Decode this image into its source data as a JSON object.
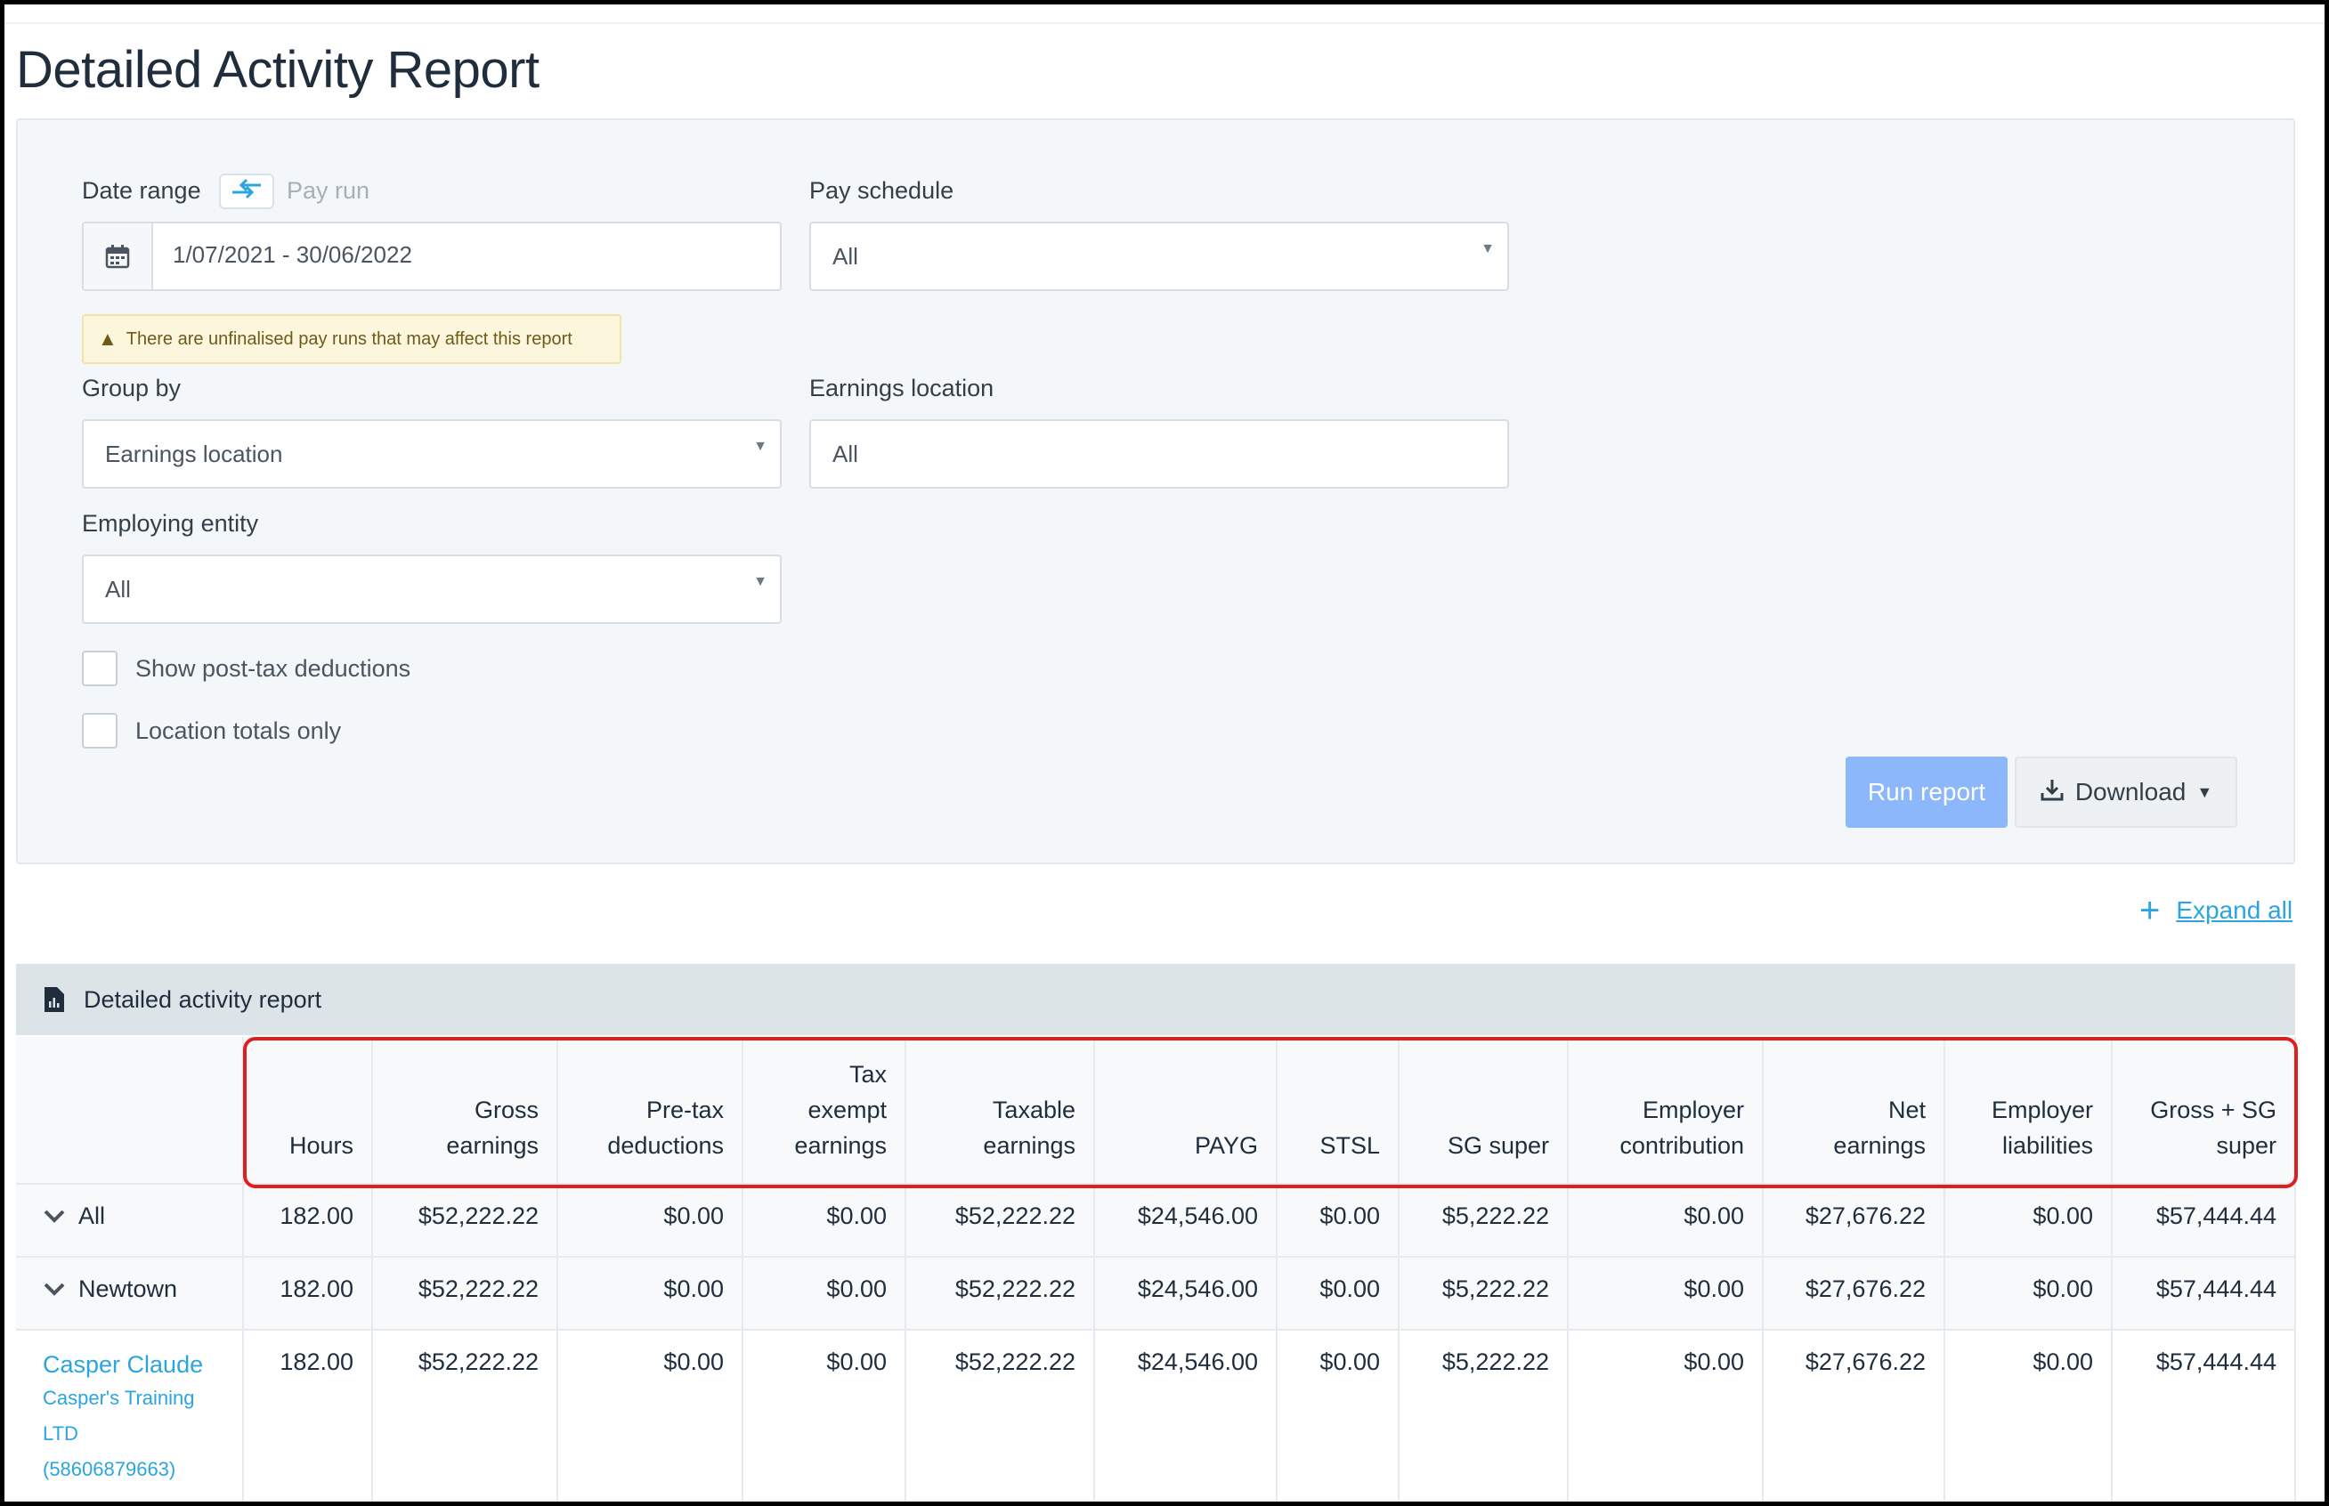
{
  "page": {
    "title": "Detailed Activity Report"
  },
  "filters": {
    "date_range_label": "Date range",
    "pay_run_toggle_label": "Pay run",
    "date_range_value": "1/07/2021 - 30/06/2022",
    "pay_schedule_label": "Pay schedule",
    "pay_schedule_value": "All",
    "warning_text": "There are unfinalised pay runs that may affect this report",
    "group_by_label": "Group by",
    "group_by_value": "Earnings location",
    "earnings_location_label": "Earnings location",
    "earnings_location_value": "All",
    "employing_entity_label": "Employing entity",
    "employing_entity_value": "All",
    "show_post_tax_label": "Show post-tax deductions",
    "location_totals_label": "Location totals only"
  },
  "actions": {
    "run_report_label": "Run report",
    "download_label": "Download",
    "expand_all_label": "Expand all"
  },
  "report": {
    "section_title": "Detailed activity report",
    "columns": [
      [
        "Hours"
      ],
      [
        "Gross",
        "earnings"
      ],
      [
        "Pre-tax",
        "deductions"
      ],
      [
        "Tax",
        "exempt",
        "earnings"
      ],
      [
        "Taxable",
        "earnings"
      ],
      [
        "PAYG"
      ],
      [
        "STSL"
      ],
      [
        "SG super"
      ],
      [
        "Employer",
        "contribution"
      ],
      [
        "Net",
        "earnings"
      ],
      [
        "Employer",
        "liabilities"
      ],
      [
        "Gross + SG",
        "super"
      ]
    ],
    "rows": [
      {
        "label": "All",
        "values": [
          "182.00",
          "$52,222.22",
          "$0.00",
          "$0.00",
          "$52,222.22",
          "$24,546.00",
          "$0.00",
          "$5,222.22",
          "$0.00",
          "$27,676.22",
          "$0.00",
          "$57,444.44"
        ]
      },
      {
        "label": "Newtown",
        "values": [
          "182.00",
          "$52,222.22",
          "$0.00",
          "$0.00",
          "$52,222.22",
          "$24,546.00",
          "$0.00",
          "$5,222.22",
          "$0.00",
          "$27,676.22",
          "$0.00",
          "$57,444.44"
        ]
      }
    ],
    "employee": {
      "name": "Casper Claude",
      "entity_line1": "Casper's Training",
      "entity_line2": "LTD",
      "entity_line3": "(58606879663)",
      "values": [
        "182.00",
        "$52,222.22",
        "$0.00",
        "$0.00",
        "$52,222.22",
        "$24,546.00",
        "$0.00",
        "$5,222.22",
        "$0.00",
        "$27,676.22",
        "$0.00",
        "$57,444.44"
      ]
    }
  },
  "icons": {
    "swap": "swap-arrows-icon",
    "calendar": "calendar-icon",
    "warning": "warning-triangle-icon",
    "download": "download-icon",
    "plus": "plus-icon",
    "chevron": "chevron-down-icon",
    "report": "report-document-icon"
  },
  "colors": {
    "accent": "#2ba5de",
    "run_button": "#8cb8fb",
    "highlight": "#e01e1e"
  }
}
